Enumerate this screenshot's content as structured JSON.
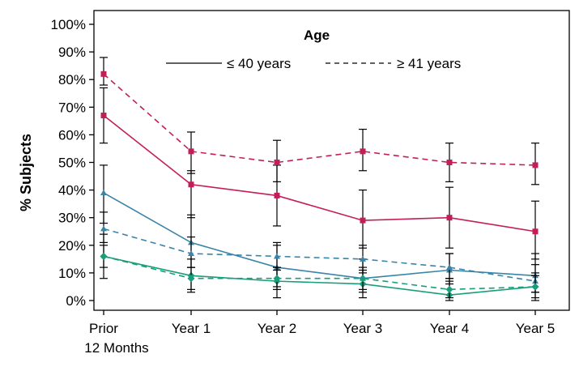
{
  "chart_data": {
    "type": "line",
    "ylabel": "% Subjects",
    "xlabel": "",
    "categories": [
      "Prior\n12 Months",
      "Year 1",
      "Year 2",
      "Year 3",
      "Year 4",
      "Year 5"
    ],
    "yticks": [
      "0%",
      "10%",
      "20%",
      "30%",
      "40%",
      "50%",
      "60%",
      "70%",
      "80%",
      "90%",
      "100%"
    ],
    "ylim": [
      0,
      100
    ],
    "grid": false,
    "legend": {
      "title": "Age",
      "position": "top-right",
      "entries": [
        {
          "label": "≤ 40 years",
          "style": "solid"
        },
        {
          "label": "≥ 41 years",
          "style": "dashed"
        }
      ]
    },
    "series": [
      {
        "group": "crimson",
        "age": "≤ 40 years",
        "color": "#c41e5a",
        "style": "solid",
        "marker": "square",
        "values": [
          67,
          42,
          38,
          29,
          30,
          25
        ],
        "low": [
          57,
          30,
          27,
          19,
          19,
          15
        ],
        "high": [
          77,
          47,
          49,
          40,
          41,
          36
        ]
      },
      {
        "group": "crimson",
        "age": "≥ 41 years",
        "color": "#c41e5a",
        "style": "dashed",
        "marker": "square",
        "values": [
          82,
          54,
          50,
          54,
          50,
          49
        ],
        "low": [
          78,
          46,
          43,
          47,
          43,
          42
        ],
        "high": [
          88,
          61,
          58,
          62,
          57,
          57
        ]
      },
      {
        "group": "blue",
        "age": "≤ 40 years",
        "color": "#3a84a8",
        "style": "solid",
        "marker": "triangle",
        "values": [
          39,
          21,
          12,
          8,
          11,
          9
        ],
        "low": [
          28,
          12,
          5,
          3,
          6,
          3
        ],
        "high": [
          49,
          31,
          20,
          15,
          17,
          17
        ]
      },
      {
        "group": "blue",
        "age": "≥ 41 years",
        "color": "#3a84a8",
        "style": "dashed",
        "marker": "triangle",
        "values": [
          26,
          17,
          16,
          15,
          12,
          7
        ],
        "low": [
          21,
          12,
          11,
          10,
          8,
          3
        ],
        "high": [
          32,
          23,
          21,
          20,
          17,
          13
        ]
      },
      {
        "group": "green",
        "age": "≤ 40 years",
        "color": "#1a9e7a",
        "style": "solid",
        "marker": "diamond",
        "values": [
          16,
          9,
          7,
          6,
          2,
          5
        ],
        "low": [
          8,
          3,
          1,
          1,
          0,
          0
        ],
        "high": [
          24,
          15,
          12,
          11,
          7,
          10
        ]
      },
      {
        "group": "green",
        "age": "≥ 41 years",
        "color": "#1a9e7a",
        "style": "dashed",
        "marker": "diamond",
        "values": [
          16,
          8,
          8,
          8,
          4,
          5
        ],
        "low": [
          12,
          4,
          4,
          4,
          1,
          1
        ],
        "high": [
          20,
          12,
          12,
          12,
          8,
          9
        ]
      }
    ]
  }
}
